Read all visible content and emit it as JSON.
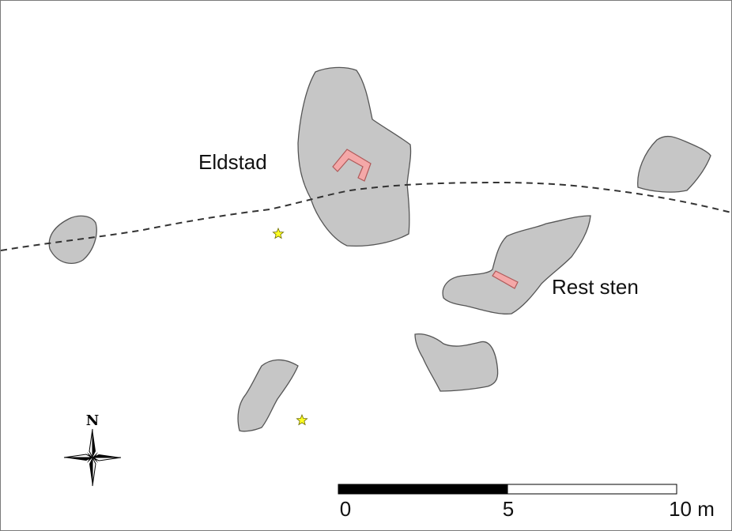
{
  "map": {
    "labels": {
      "hearth": "Eldstad",
      "stone_remains": "Rest sten"
    },
    "north_arrow": {
      "letter": "N",
      "icon": "north-arrow-compass-icon"
    },
    "scale_bar": {
      "ticks": [
        "0",
        "5",
        "10 m"
      ],
      "segment_colors": [
        "#000000",
        "#ffffff"
      ]
    },
    "colors": {
      "stone": "#c6c6c6",
      "feature": "#f4a8a8",
      "find_marker": "#ffff22",
      "trail": "#333333"
    }
  }
}
